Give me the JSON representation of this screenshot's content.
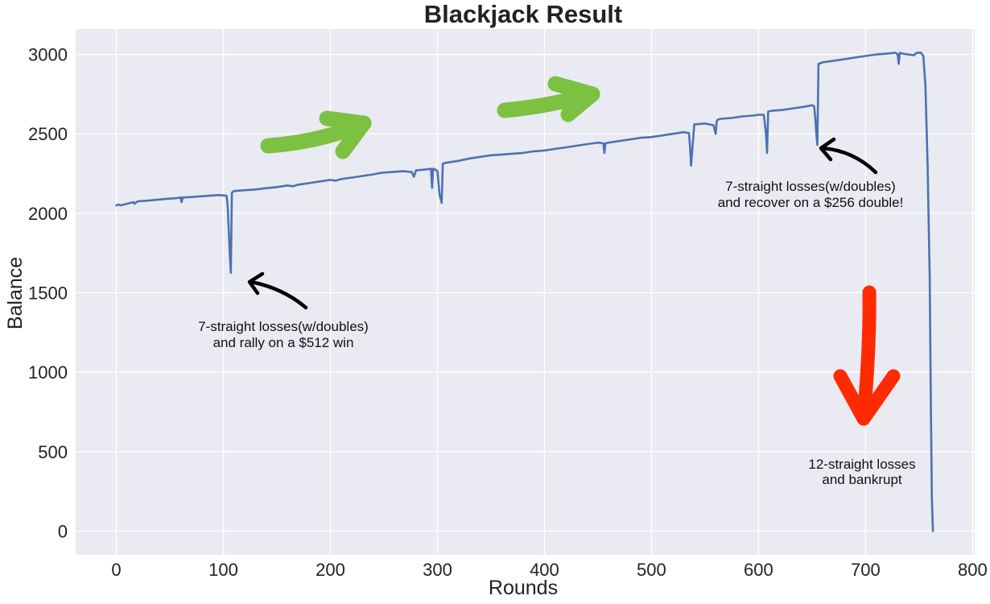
{
  "chart_data": {
    "type": "line",
    "title": "Blackjack Result",
    "xlabel": "Rounds",
    "ylabel": "Balance",
    "xlim": [
      -38,
      802
    ],
    "ylim": [
      -150,
      3160
    ],
    "xticks": [
      0,
      100,
      200,
      300,
      400,
      500,
      600,
      700,
      800
    ],
    "yticks": [
      0,
      500,
      1000,
      1500,
      2000,
      2500,
      3000
    ],
    "grid": true,
    "line_color": "#4c72b0",
    "background": "#eaeaf2",
    "series": [
      {
        "x": [
          0,
          2,
          4,
          10,
          16,
          17,
          20,
          30,
          38,
          46,
          56,
          60,
          61,
          62,
          66,
          76,
          86,
          96,
          103,
          104,
          105,
          106,
          107,
          108,
          110,
          120,
          130,
          140,
          150,
          160,
          165,
          170,
          180,
          190,
          200,
          205,
          210,
          220,
          230,
          240,
          248,
          258,
          268,
          276,
          278,
          280,
          288,
          294,
          295,
          296,
          298,
          300,
          302,
          304,
          305,
          306,
          310,
          320,
          330,
          340,
          350,
          360,
          370,
          380,
          390,
          400,
          410,
          420,
          430,
          440,
          450,
          455,
          456,
          457,
          460,
          470,
          480,
          490,
          500,
          510,
          520,
          530,
          535,
          536,
          537,
          540,
          550,
          558,
          560,
          561,
          562,
          565,
          575,
          585,
          595,
          600,
          605,
          607,
          608,
          609,
          612,
          622,
          632,
          642,
          650,
          652,
          653,
          654,
          655,
          656,
          660,
          670,
          680,
          690,
          700,
          710,
          720,
          728,
          730,
          731,
          732,
          735,
          740,
          745,
          748,
          752,
          754,
          756,
          758,
          760,
          761,
          762,
          763
        ],
        "values": [
          2050,
          2055,
          2050,
          2060,
          2070,
          2060,
          2075,
          2080,
          2085,
          2090,
          2095,
          2100,
          2070,
          2100,
          2100,
          2105,
          2110,
          2115,
          2110,
          2050,
          1900,
          1740,
          1625,
          2130,
          2140,
          2145,
          2150,
          2158,
          2165,
          2175,
          2170,
          2180,
          2190,
          2200,
          2210,
          2205,
          2215,
          2225,
          2235,
          2245,
          2255,
          2260,
          2265,
          2260,
          2230,
          2270,
          2275,
          2280,
          2160,
          2280,
          2275,
          2265,
          2120,
          2065,
          2310,
          2315,
          2320,
          2330,
          2345,
          2355,
          2365,
          2370,
          2375,
          2380,
          2390,
          2395,
          2405,
          2415,
          2425,
          2435,
          2445,
          2440,
          2380,
          2440,
          2445,
          2455,
          2465,
          2475,
          2480,
          2490,
          2500,
          2510,
          2505,
          2420,
          2300,
          2560,
          2565,
          2555,
          2500,
          2580,
          2590,
          2595,
          2600,
          2610,
          2615,
          2620,
          2620,
          2500,
          2380,
          2640,
          2645,
          2650,
          2660,
          2670,
          2680,
          2675,
          2600,
          2500,
          2430,
          2940,
          2950,
          2960,
          2970,
          2980,
          2990,
          3000,
          3005,
          3010,
          3000,
          2940,
          3010,
          3005,
          3000,
          2995,
          3010,
          3010,
          2990,
          2800,
          2300,
          1600,
          800,
          200,
          0
        ]
      }
    ],
    "annotations": [
      {
        "text_line1": "7-straight losses(w/doubles)",
        "text_line2": "and rally on a $512 win"
      },
      {
        "text_line1": "7-straight losses(w/doubles)",
        "text_line2": "and recover on a $256 double!"
      },
      {
        "text_line1": "12-straight losses",
        "text_line2": "and bankrupt"
      }
    ]
  }
}
